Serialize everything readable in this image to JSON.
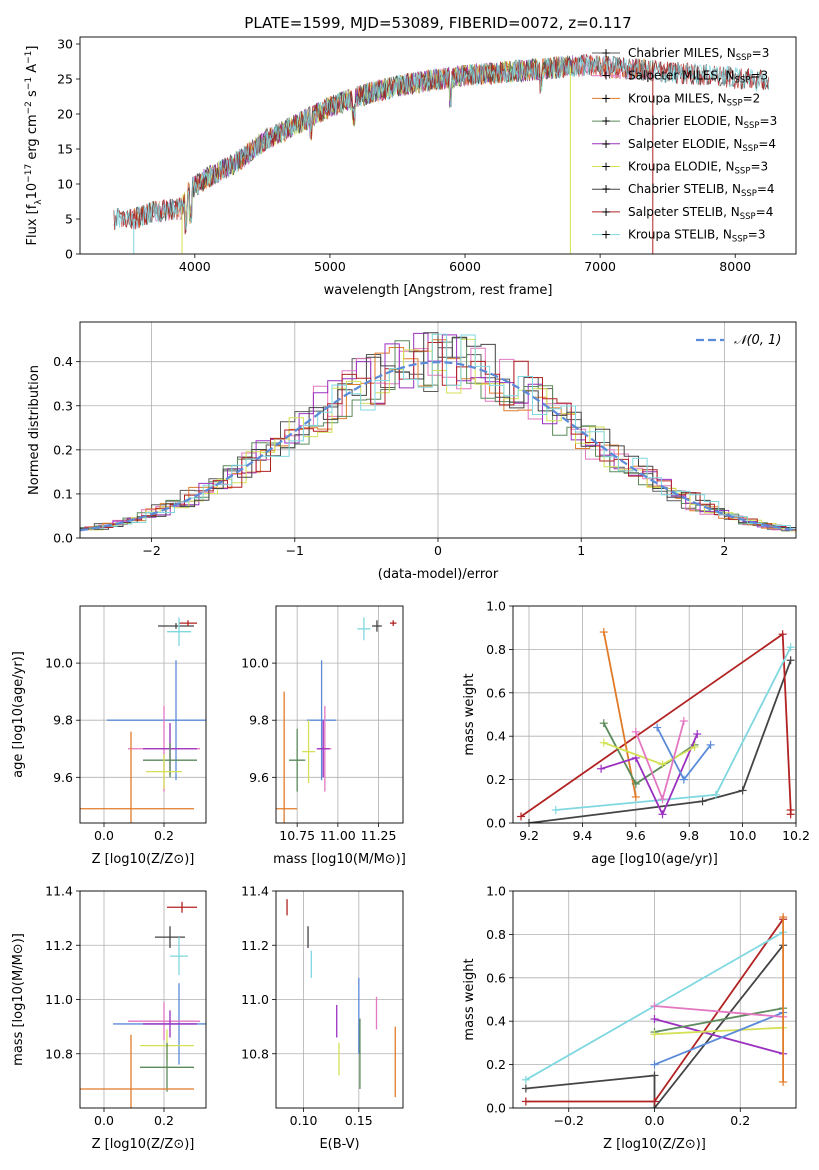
{
  "figure_title": "PLATE=1599, MJD=53089, FIBERID=0072, z=0.117",
  "chart_data": [
    {
      "id": "spectrum",
      "type": "line",
      "title": "PLATE=1599, MJD=53089, FIBERID=0072, z=0.117",
      "xlabel": "wavelength [Angstrom, rest frame]",
      "ylabel": "Flux [f_λ 10^-17 erg cm^-2 s^-1 A^-1]",
      "xlim": [
        3150,
        8450
      ],
      "ylim": [
        0,
        31
      ],
      "xticks": [
        4000,
        5000,
        6000,
        7000,
        8000
      ],
      "yticks": [
        0,
        5,
        10,
        15,
        20,
        25,
        30
      ],
      "grid": false,
      "legend_position": "right",
      "continuum": {
        "x": [
          3400,
          3550,
          3700,
          3900,
          3950,
          4100,
          4300,
          4500,
          4800,
          5000,
          5200,
          5500,
          5800,
          6000,
          6300,
          6600,
          6900,
          7200,
          7500,
          7800,
          8100,
          8250
        ],
        "y": [
          5,
          5,
          6,
          6.5,
          9,
          11,
          13,
          16,
          19,
          21,
          22.5,
          24,
          25,
          25.5,
          26,
          26.5,
          27,
          26.5,
          26,
          25.5,
          25,
          24.5
        ]
      },
      "series": [
        {
          "name": "Chabrier MILES, N_SSP=3",
          "color": "#5a5a5a",
          "marker": "+",
          "x_range": [
            3550,
            7400
          ]
        },
        {
          "name": "Salpeter MILES, N_SSP=3",
          "color": "#e377c2",
          "marker": "+",
          "x_range": [
            3550,
            7400
          ]
        },
        {
          "name": "Kroupa MILES, N_SSP=2",
          "color": "#e07b2a",
          "marker": "+",
          "x_range": [
            3550,
            7400
          ]
        },
        {
          "name": "Chabrier ELODIE, N_SSP=3",
          "color": "#5b8a5b",
          "marker": "+",
          "x_range": [
            3900,
            6800
          ]
        },
        {
          "name": "Salpeter ELODIE, N_SSP=4",
          "color": "#9b30c0",
          "marker": "+",
          "x_range": [
            3900,
            6800
          ]
        },
        {
          "name": "Kroupa ELODIE, N_SSP=3",
          "color": "#d4e157",
          "marker": "+",
          "x_range": [
            3900,
            6800
          ]
        },
        {
          "name": "Chabrier STELIB, N_SSP=4",
          "color": "#444444",
          "marker": "+",
          "x_range": [
            3400,
            8250
          ]
        },
        {
          "name": "Salpeter STELIB, N_SSP=4",
          "color": "#b22222",
          "marker": "+",
          "x_range": [
            3400,
            8250
          ]
        },
        {
          "name": "Kroupa STELIB, N_SSP=3",
          "color": "#7fd8e0",
          "marker": "+",
          "x_range": [
            3400,
            8250
          ]
        }
      ]
    },
    {
      "id": "residuals",
      "type": "histogram",
      "xlabel": "(data-model)/error",
      "ylabel": "Normed distribution",
      "xlim": [
        -2.5,
        2.5
      ],
      "ylim": [
        0,
        0.49
      ],
      "xticks": [
        -2,
        -1,
        0,
        1,
        2
      ],
      "yticks": [
        0.0,
        0.1,
        0.2,
        0.3,
        0.4
      ],
      "grid": true,
      "bin_width": 0.1,
      "legend": [
        {
          "label": "N(0,1)",
          "color": "#5b8bd8",
          "style": "dashed"
        }
      ],
      "legend_position": "top-right"
    },
    {
      "id": "age_vs_Z",
      "type": "errorbar",
      "xlabel": "Z [log10(Z/Z⊙)]",
      "ylabel": "age [log10(age/yr)]",
      "xlim": [
        -0.08,
        0.34
      ],
      "ylim": [
        9.44,
        10.2
      ],
      "xticks": [
        0.0,
        0.2
      ],
      "yticks": [
        9.6,
        9.8,
        10.0
      ],
      "grid": true,
      "points": [
        {
          "x": 0.24,
          "y": 10.13,
          "xerr": 0.06,
          "yerr": 0.01,
          "color": "#444444"
        },
        {
          "x": 0.28,
          "y": 10.14,
          "xerr": 0.03,
          "yerr": 0.01,
          "color": "#b22222"
        },
        {
          "x": 0.25,
          "y": 10.11,
          "xerr": 0.04,
          "yerr": 0.05,
          "color": "#7fd8e0"
        },
        {
          "x": 0.24,
          "y": 9.8,
          "xerr": 0.23,
          "yerr": 0.21,
          "color": "#5b8bd8"
        },
        {
          "x": 0.2,
          "y": 9.7,
          "xerr": 0.12,
          "yerr": 0.15,
          "color": "#e377c2"
        },
        {
          "x": 0.22,
          "y": 9.7,
          "xerr": 0.09,
          "yerr": 0.09,
          "color": "#9b30c0"
        },
        {
          "x": 0.22,
          "y": 9.66,
          "xerr": 0.09,
          "yerr": 0.06,
          "color": "#5b8a5b"
        },
        {
          "x": 0.2,
          "y": 9.62,
          "xerr": 0.06,
          "yerr": 0.06,
          "color": "#d4e157"
        },
        {
          "x": 0.09,
          "y": 9.49,
          "xerr": 0.21,
          "yerr": 0.27,
          "color": "#e07b2a"
        }
      ]
    },
    {
      "id": "age_vs_mass",
      "type": "errorbar",
      "xlabel": "mass [log10(M/M⊙)]",
      "ylabel": "",
      "xlim": [
        10.62,
        11.4
      ],
      "ylim": [
        9.44,
        10.2
      ],
      "xticks": [
        10.75,
        11.0,
        11.25
      ],
      "yticks": [
        9.6,
        9.8,
        10.0
      ],
      "grid": true,
      "points": [
        {
          "x": 11.24,
          "y": 10.13,
          "xerr": 0.03,
          "yerr": 0.02,
          "color": "#444444"
        },
        {
          "x": 11.34,
          "y": 10.14,
          "xerr": 0.02,
          "yerr": 0.01,
          "color": "#b22222"
        },
        {
          "x": 11.16,
          "y": 10.12,
          "xerr": 0.04,
          "yerr": 0.04,
          "color": "#7fd8e0"
        },
        {
          "x": 10.9,
          "y": 9.8,
          "xerr": 0.09,
          "yerr": 0.21,
          "color": "#5b8bd8"
        },
        {
          "x": 10.92,
          "y": 9.7,
          "xerr": 0.04,
          "yerr": 0.15,
          "color": "#e377c2"
        },
        {
          "x": 10.91,
          "y": 9.7,
          "xerr": 0.04,
          "yerr": 0.1,
          "color": "#9b30c0"
        },
        {
          "x": 10.75,
          "y": 9.66,
          "xerr": 0.05,
          "yerr": 0.11,
          "color": "#5b8a5b"
        },
        {
          "x": 10.82,
          "y": 9.69,
          "xerr": 0.04,
          "yerr": 0.11,
          "color": "#d4e157"
        },
        {
          "x": 10.67,
          "y": 9.49,
          "xerr": 0.08,
          "yerr": 0.41,
          "color": "#e07b2a"
        }
      ]
    },
    {
      "id": "massweight_vs_age",
      "type": "line",
      "xlabel": "age [log10(age/yr)]",
      "ylabel": "mass weight",
      "xlim": [
        9.14,
        10.2
      ],
      "ylim": [
        0.0,
        1.0
      ],
      "xticks": [
        9.2,
        9.4,
        9.6,
        9.8,
        10.0,
        10.2
      ],
      "yticks": [
        0.0,
        0.2,
        0.4,
        0.6,
        0.8,
        1.0
      ],
      "grid": true,
      "series": [
        {
          "name": "Chabrier STELIB",
          "color": "#444444",
          "x": [
            9.2,
            9.85,
            10.0,
            10.18
          ],
          "y": [
            0.0,
            0.1,
            0.15,
            0.75
          ]
        },
        {
          "name": "Salpeter STELIB",
          "color": "#b22222",
          "x": [
            9.17,
            10.15,
            10.18,
            10.18
          ],
          "y": [
            0.03,
            0.87,
            0.06,
            0.04
          ]
        },
        {
          "name": "Kroupa STELIB",
          "color": "#7fd8e0",
          "x": [
            9.3,
            9.9,
            10.18
          ],
          "y": [
            0.06,
            0.13,
            0.81
          ]
        },
        {
          "name": "Kroupa MILES",
          "color": "#e07b2a",
          "x": [
            9.48,
            9.6
          ],
          "y": [
            0.88,
            0.12
          ]
        },
        {
          "name": "Chabrier ELODIE",
          "color": "#5b8a5b",
          "x": [
            9.48,
            9.6,
            9.82
          ],
          "y": [
            0.46,
            0.18,
            0.36
          ]
        },
        {
          "name": "Salpeter ELODIE",
          "color": "#9b30c0",
          "x": [
            9.47,
            9.6,
            9.7,
            9.83
          ],
          "y": [
            0.25,
            0.3,
            0.04,
            0.41
          ]
        },
        {
          "name": "Kroupa ELODIE",
          "color": "#d4e157",
          "x": [
            9.48,
            9.7,
            9.82
          ],
          "y": [
            0.37,
            0.27,
            0.35
          ]
        },
        {
          "name": "Chabrier MILES",
          "color": "#5b8bd8",
          "x": [
            9.68,
            9.78,
            9.88
          ],
          "y": [
            0.44,
            0.2,
            0.36
          ]
        },
        {
          "name": "Salpeter MILES",
          "color": "#e377c2",
          "x": [
            9.6,
            9.7,
            9.78
          ],
          "y": [
            0.42,
            0.11,
            0.47
          ]
        }
      ]
    },
    {
      "id": "mass_vs_Z",
      "type": "errorbar",
      "xlabel": "Z [log10(Z/Z⊙)]",
      "ylabel": "mass [log10(M/M⊙)]",
      "xlim": [
        -0.08,
        0.34
      ],
      "ylim": [
        10.6,
        11.4
      ],
      "xticks": [
        0.0,
        0.2
      ],
      "yticks": [
        10.8,
        11.0,
        11.2,
        11.4
      ],
      "grid": true,
      "points": [
        {
          "x": 0.26,
          "y": 11.34,
          "xerr": 0.05,
          "yerr": 0.02,
          "color": "#b22222"
        },
        {
          "x": 0.22,
          "y": 11.23,
          "xerr": 0.05,
          "yerr": 0.04,
          "color": "#444444"
        },
        {
          "x": 0.25,
          "y": 11.16,
          "xerr": 0.03,
          "yerr": 0.07,
          "color": "#7fd8e0"
        },
        {
          "x": 0.25,
          "y": 10.91,
          "xerr": 0.22,
          "yerr": 0.15,
          "color": "#5b8bd8"
        },
        {
          "x": 0.2,
          "y": 10.92,
          "xerr": 0.12,
          "yerr": 0.07,
          "color": "#e377c2"
        },
        {
          "x": 0.22,
          "y": 10.91,
          "xerr": 0.09,
          "yerr": 0.05,
          "color": "#9b30c0"
        },
        {
          "x": 0.21,
          "y": 10.83,
          "xerr": 0.09,
          "yerr": 0.06,
          "color": "#d4e157"
        },
        {
          "x": 0.21,
          "y": 10.75,
          "xerr": 0.09,
          "yerr": 0.09,
          "color": "#5b8a5b"
        },
        {
          "x": 0.09,
          "y": 10.67,
          "xerr": 0.21,
          "yerr": 0.2,
          "color": "#e07b2a"
        }
      ]
    },
    {
      "id": "mass_vs_ebv",
      "type": "errorbar",
      "xlabel": "E(B-V)",
      "ylabel": "",
      "xlim": [
        0.075,
        0.19
      ],
      "ylim": [
        10.6,
        11.4
      ],
      "xticks": [
        0.1,
        0.15
      ],
      "yticks": [
        10.8,
        11.0,
        11.2,
        11.4
      ],
      "grid": true,
      "points": [
        {
          "x": 0.085,
          "y": 11.34,
          "xerr": 0.0,
          "yerr": 0.03,
          "color": "#b22222"
        },
        {
          "x": 0.104,
          "y": 11.23,
          "xerr": 0.0,
          "yerr": 0.04,
          "color": "#444444"
        },
        {
          "x": 0.107,
          "y": 11.13,
          "xerr": 0.0,
          "yerr": 0.05,
          "color": "#7fd8e0"
        },
        {
          "x": 0.15,
          "y": 10.94,
          "xerr": 0.0,
          "yerr": 0.14,
          "color": "#5b8bd8"
        },
        {
          "x": 0.166,
          "y": 10.95,
          "xerr": 0.0,
          "yerr": 0.06,
          "color": "#e377c2"
        },
        {
          "x": 0.13,
          "y": 10.92,
          "xerr": 0.0,
          "yerr": 0.06,
          "color": "#9b30c0"
        },
        {
          "x": 0.132,
          "y": 10.78,
          "xerr": 0.0,
          "yerr": 0.06,
          "color": "#d4e157"
        },
        {
          "x": 0.151,
          "y": 10.8,
          "xerr": 0.0,
          "yerr": 0.13,
          "color": "#5b8a5b"
        },
        {
          "x": 0.183,
          "y": 10.77,
          "xerr": 0.0,
          "yerr": 0.13,
          "color": "#e07b2a"
        }
      ]
    },
    {
      "id": "massweight_vs_Z",
      "type": "line",
      "xlabel": "Z [log10(Z/Z⊙)]",
      "ylabel": "mass weight",
      "xlim": [
        -0.33,
        0.33
      ],
      "ylim": [
        0.0,
        1.0
      ],
      "xticks": [
        -0.2,
        0.0,
        0.2
      ],
      "yticks": [
        0.0,
        0.2,
        0.4,
        0.6,
        0.8,
        1.0
      ],
      "grid": true,
      "series": [
        {
          "name": "Chabrier STELIB",
          "color": "#444444",
          "x": [
            -0.3,
            0.0,
            0.0,
            0.3
          ],
          "y": [
            0.09,
            0.15,
            0.0,
            0.75
          ]
        },
        {
          "name": "Salpeter STELIB",
          "color": "#b22222",
          "x": [
            -0.3,
            0.0,
            0.3
          ],
          "y": [
            0.03,
            0.03,
            0.87
          ]
        },
        {
          "name": "Kroupa STELIB",
          "color": "#7fd8e0",
          "x": [
            -0.3,
            0.0,
            0.3
          ],
          "y": [
            0.13,
            0.47,
            0.81
          ]
        },
        {
          "name": "Salpeter ELODIE",
          "color": "#9b30c0",
          "x": [
            0.0,
            0.3
          ],
          "y": [
            0.41,
            0.25
          ]
        },
        {
          "name": "Chabrier ELODIE",
          "color": "#5b8a5b",
          "x": [
            0.0,
            0.3
          ],
          "y": [
            0.35,
            0.46
          ]
        },
        {
          "name": "Kroupa ELODIE",
          "color": "#d4e157",
          "x": [
            0.0,
            0.3
          ],
          "y": [
            0.34,
            0.37
          ]
        },
        {
          "name": "Chabrier MILES",
          "color": "#5b8bd8",
          "x": [
            0.0,
            0.3
          ],
          "y": [
            0.2,
            0.44
          ]
        },
        {
          "name": "Salpeter MILES",
          "color": "#e377c2",
          "x": [
            0.0,
            0.3
          ],
          "y": [
            0.47,
            0.42
          ]
        },
        {
          "name": "Kroupa MILES",
          "color": "#e07b2a",
          "x": [
            0.3,
            0.3
          ],
          "y": [
            0.12,
            0.88
          ]
        }
      ]
    }
  ]
}
